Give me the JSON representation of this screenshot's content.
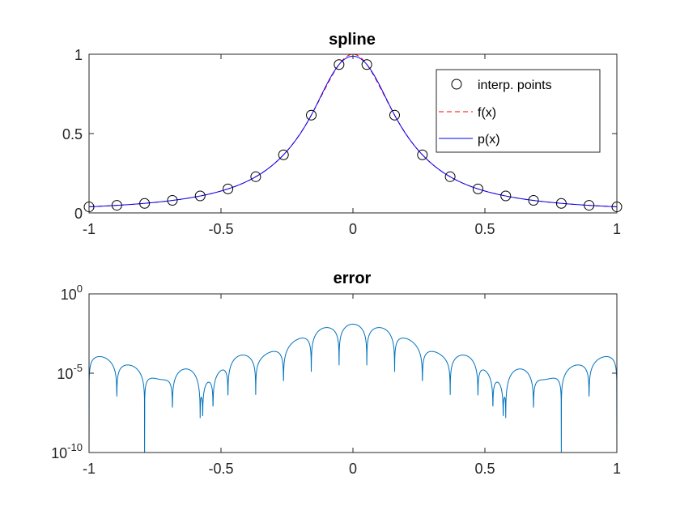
{
  "chart_data": [
    {
      "type": "line",
      "title": "spline",
      "xlabel": "",
      "ylabel": "",
      "xlim": [
        -1,
        1
      ],
      "ylim": [
        0,
        1
      ],
      "xticks": [
        -1,
        -0.5,
        0,
        0.5,
        1
      ],
      "xtick_labels": [
        "-1",
        "-0.5",
        "0",
        "0.5",
        "1"
      ],
      "yticks": [
        0,
        0.5,
        1
      ],
      "ytick_labels": [
        "0",
        "0.5",
        "1"
      ],
      "legend_position": "top-right",
      "series": [
        {
          "name": "interp. points",
          "style": "markers",
          "marker": "circle",
          "color": "#000000",
          "x": [
            -1.0,
            -0.8947,
            -0.7895,
            -0.6842,
            -0.5789,
            -0.4737,
            -0.3684,
            -0.2632,
            -0.1579,
            -0.0526,
            0.0526,
            0.1579,
            0.2632,
            0.3684,
            0.4737,
            0.5789,
            0.6842,
            0.7895,
            0.8947,
            1.0
          ],
          "y": [
            0.038,
            0.048,
            0.06,
            0.079,
            0.107,
            0.151,
            0.228,
            0.366,
            0.616,
            0.935,
            0.935,
            0.616,
            0.366,
            0.228,
            0.151,
            0.107,
            0.079,
            0.06,
            0.048,
            0.038
          ]
        },
        {
          "name": "f(x)",
          "style": "dashed",
          "color": "#ff0000",
          "function": "1/(1+25x^2)"
        },
        {
          "name": "p(x)",
          "style": "solid",
          "color": "#0000ff",
          "function": "cubic spline through interp. points"
        }
      ]
    },
    {
      "type": "line",
      "title": "error",
      "xlabel": "",
      "ylabel": "",
      "xlim": [
        -1,
        1
      ],
      "ylim": [
        1e-10,
        1
      ],
      "yscale": "log",
      "xticks": [
        -1,
        -0.5,
        0,
        0.5,
        1
      ],
      "xtick_labels": [
        "-1",
        "-0.5",
        "0",
        "0.5",
        "1"
      ],
      "yticks": [
        1e-10,
        1e-05,
        1
      ],
      "ytick_labels": [
        {
          "base": "10",
          "exp": "-10"
        },
        {
          "base": "10",
          "exp": "-5"
        },
        {
          "base": "10",
          "exp": "0"
        }
      ],
      "series": [
        {
          "name": "",
          "style": "solid",
          "color": "#0072bd",
          "function": "|f(x) - p(x)|"
        }
      ]
    }
  ]
}
